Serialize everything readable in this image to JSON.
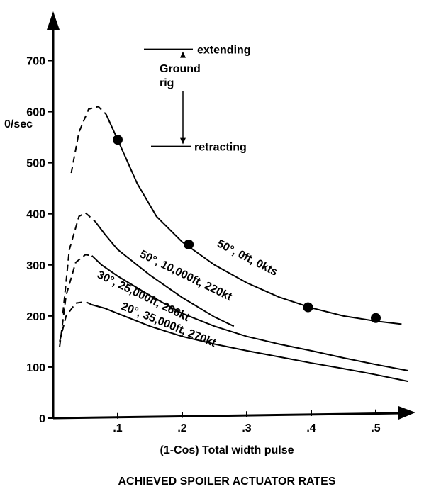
{
  "chart_data": {
    "type": "line",
    "title": "ACHIEVED SPOILER ACTUATOR RATES",
    "xlabel": "(1-Cos) Total width pulse",
    "ylabel": "0/sec",
    "xlim": [
      0,
      0.555
    ],
    "ylim": [
      0,
      760
    ],
    "x_ticks": [
      0.1,
      0.2,
      0.3,
      0.4,
      0.5
    ],
    "x_tick_labels": [
      ".1",
      ".2",
      ".3",
      ".4",
      ".5"
    ],
    "y_ticks": [
      0,
      100,
      200,
      300,
      400,
      500,
      600,
      700
    ],
    "y_tick_labels": [
      "0",
      "100",
      "200",
      "300",
      "400",
      "500",
      "600",
      "700"
    ],
    "grid": false,
    "series": [
      {
        "name": "50°, 0ft, 0kts",
        "dashed": [
          [
            0.028,
            480
          ],
          [
            0.04,
            560
          ],
          [
            0.055,
            605
          ],
          [
            0.07,
            610
          ],
          [
            0.082,
            595
          ]
        ],
        "solid": [
          [
            0.082,
            595
          ],
          [
            0.1,
            545
          ],
          [
            0.13,
            460
          ],
          [
            0.16,
            395
          ],
          [
            0.2,
            345
          ],
          [
            0.25,
            300
          ],
          [
            0.3,
            265
          ],
          [
            0.35,
            237
          ],
          [
            0.4,
            216
          ],
          [
            0.45,
            200
          ],
          [
            0.5,
            190
          ],
          [
            0.54,
            184
          ]
        ],
        "points": [
          [
            0.1,
            545
          ],
          [
            0.21,
            340
          ],
          [
            0.395,
            217
          ],
          [
            0.5,
            196
          ]
        ]
      },
      {
        "name": "50°, 10,000ft, 220kt",
        "dashed": [
          [
            0.015,
            205
          ],
          [
            0.025,
            330
          ],
          [
            0.04,
            395
          ],
          [
            0.05,
            402
          ],
          [
            0.065,
            385
          ]
        ],
        "solid": [
          [
            0.065,
            385
          ],
          [
            0.08,
            360
          ],
          [
            0.1,
            330
          ],
          [
            0.15,
            280
          ],
          [
            0.2,
            236
          ],
          [
            0.25,
            198
          ],
          [
            0.28,
            180
          ]
        ]
      },
      {
        "name": "30°, 25,000ft, 266kt",
        "dashed": [
          [
            0.01,
            140
          ],
          [
            0.02,
            240
          ],
          [
            0.035,
            305
          ],
          [
            0.05,
            320
          ],
          [
            0.06,
            318
          ]
        ],
        "solid": [
          [
            0.06,
            318
          ],
          [
            0.075,
            300
          ],
          [
            0.1,
            278
          ],
          [
            0.15,
            240
          ],
          [
            0.2,
            205
          ],
          [
            0.25,
            180
          ],
          [
            0.3,
            160
          ],
          [
            0.35,
            145
          ],
          [
            0.4,
            132
          ],
          [
            0.45,
            118
          ],
          [
            0.5,
            105
          ],
          [
            0.55,
            93
          ]
        ]
      },
      {
        "name": "20°, 35,000ft, 270kt",
        "dashed": [
          [
            0.01,
            150
          ],
          [
            0.02,
            200
          ],
          [
            0.035,
            225
          ],
          [
            0.05,
            228
          ],
          [
            0.06,
            222
          ]
        ],
        "solid": [
          [
            0.06,
            222
          ],
          [
            0.08,
            215
          ],
          [
            0.1,
            205
          ],
          [
            0.15,
            180
          ],
          [
            0.2,
            160
          ],
          [
            0.25,
            145
          ],
          [
            0.3,
            132
          ],
          [
            0.35,
            120
          ],
          [
            0.4,
            108
          ],
          [
            0.45,
            97
          ],
          [
            0.5,
            85
          ],
          [
            0.55,
            72
          ]
        ]
      }
    ],
    "annotations": {
      "extending": {
        "label": "extending",
        "y": 722
      },
      "retracting": {
        "label": "retracting",
        "y": 532
      },
      "ground_rig": [
        "Ground",
        "rig"
      ]
    }
  }
}
